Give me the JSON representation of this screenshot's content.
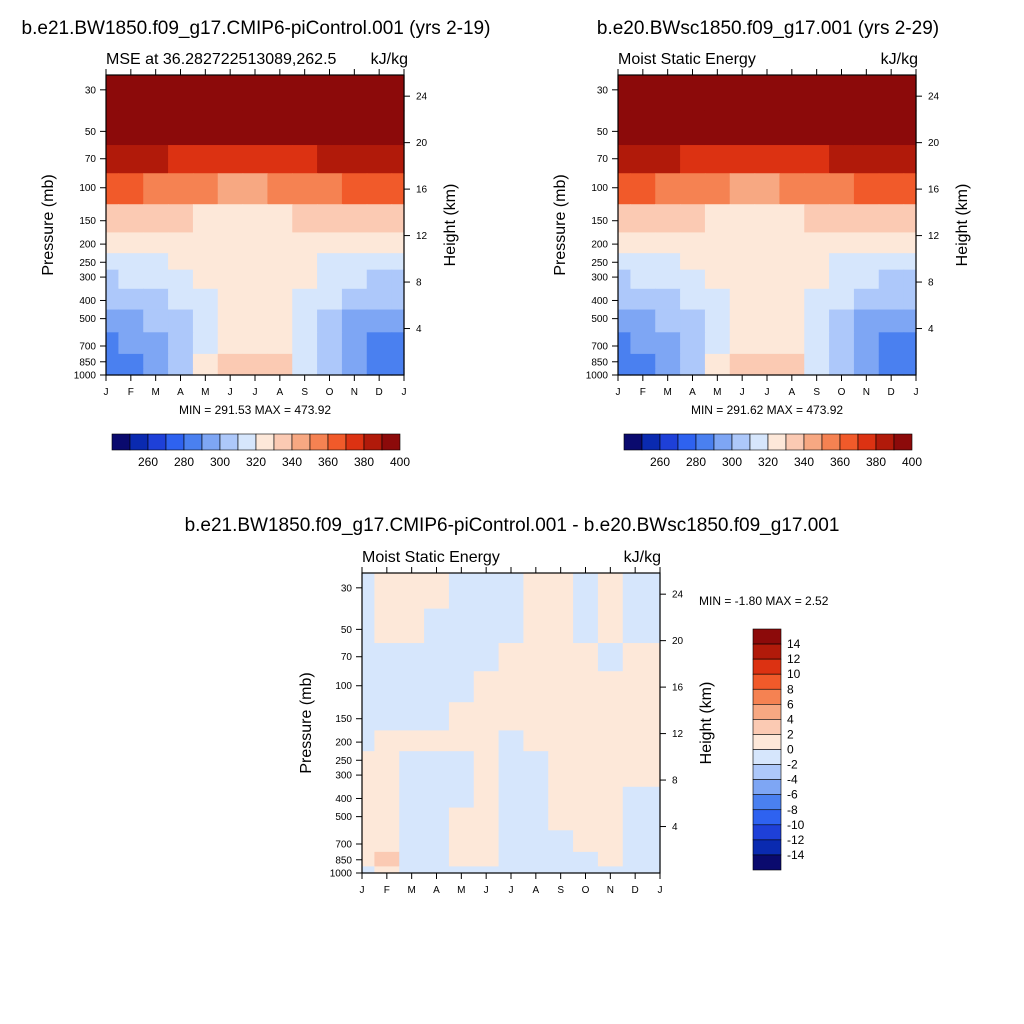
{
  "chart_data": [
    {
      "type": "heatmap",
      "title": "b.e21.BW1850.f09_g17.CMIP6-piControl.001 (yrs 2-19)",
      "subtitle_left": "MSE at 36.282722513089,262.5",
      "subtitle_right": "kJ/kg",
      "ylabel": "Pressure (mb)",
      "y2label": "Height (km)",
      "xticks": [
        "J",
        "F",
        "M",
        "A",
        "M",
        "J",
        "J",
        "A",
        "S",
        "O",
        "N",
        "D",
        "J"
      ],
      "pressure_ticks": [
        "30",
        "50",
        "70",
        "100",
        "150",
        "200",
        "250",
        "300",
        "400",
        "500",
        "700",
        "850",
        "1000"
      ],
      "height_ticks": [
        "24",
        "20",
        "16",
        "12",
        "8",
        "4"
      ],
      "min_max": "MIN = 291.53 MAX = 473.92",
      "colorbar_labels": [
        "260",
        "280",
        "300",
        "320",
        "340",
        "360",
        "380",
        "400"
      ],
      "colorbar_colors": [
        "#0a0a6e",
        "#0a2ab0",
        "#1e40d8",
        "#2e62f0",
        "#4a80f0",
        "#7ea6f4",
        "#adc8fa",
        "#d6e6fc",
        "#fde8d9",
        "#fbcab3",
        "#f7a882",
        "#f58252",
        "#f15a2a",
        "#dc3212",
        "#b11a0a",
        "#8c0a0a"
      ],
      "rows": [
        {
          "p": "30",
          "v": [
            420,
            420,
            420,
            420,
            420,
            420,
            420,
            420,
            420,
            420,
            420,
            420,
            420
          ]
        },
        {
          "p": "50",
          "v": [
            420,
            420,
            420,
            420,
            420,
            420,
            420,
            420,
            420,
            420,
            420,
            420,
            420
          ]
        },
        {
          "p": "70",
          "v": [
            398,
            396,
            392,
            388,
            386,
            384,
            384,
            386,
            388,
            392,
            396,
            398,
            398
          ]
        },
        {
          "p": "100",
          "v": [
            372,
            370,
            366,
            362,
            360,
            358,
            358,
            360,
            362,
            366,
            370,
            372,
            372
          ]
        },
        {
          "p": "150",
          "v": [
            348,
            346,
            343,
            340,
            339,
            338,
            338,
            339,
            340,
            343,
            346,
            348,
            348
          ]
        },
        {
          "p": "200",
          "v": [
            336,
            336,
            335,
            334,
            334,
            333,
            333,
            334,
            334,
            335,
            336,
            336,
            336
          ]
        },
        {
          "p": "250",
          "v": [
            324,
            325,
            327,
            330,
            333,
            336,
            337,
            335,
            331,
            328,
            325,
            324,
            324
          ]
        },
        {
          "p": "300",
          "v": [
            318,
            320,
            323,
            327,
            332,
            336,
            338,
            336,
            330,
            325,
            321,
            318,
            318
          ]
        },
        {
          "p": "400",
          "v": [
            310,
            312,
            316,
            322,
            328,
            334,
            337,
            334,
            327,
            320,
            314,
            310,
            310
          ]
        },
        {
          "p": "500",
          "v": [
            304,
            307,
            312,
            318,
            326,
            332,
            335,
            332,
            326,
            317,
            309,
            304,
            304
          ]
        },
        {
          "p": "700",
          "v": [
            298,
            302,
            308,
            316,
            326,
            334,
            338,
            334,
            326,
            314,
            304,
            298,
            298
          ]
        },
        {
          "p": "850",
          "v": [
            294,
            298,
            306,
            318,
            330,
            340,
            344,
            340,
            328,
            314,
            302,
            294,
            294
          ]
        },
        {
          "p": "1000",
          "v": [
            293,
            297,
            305,
            318,
            331,
            341,
            345,
            341,
            329,
            314,
            301,
            293,
            293
          ]
        }
      ]
    },
    {
      "type": "heatmap",
      "title": "b.e20.BWsc1850.f09_g17.001 (yrs 2-29)",
      "subtitle_left": "Moist Static Energy",
      "subtitle_right": "kJ/kg",
      "ylabel": "Pressure (mb)",
      "y2label": "Height (km)",
      "xticks": [
        "J",
        "F",
        "M",
        "A",
        "M",
        "J",
        "J",
        "A",
        "S",
        "O",
        "N",
        "D",
        "J"
      ],
      "pressure_ticks": [
        "30",
        "50",
        "70",
        "100",
        "150",
        "200",
        "250",
        "300",
        "400",
        "500",
        "700",
        "850",
        "1000"
      ],
      "height_ticks": [
        "24",
        "20",
        "16",
        "12",
        "8",
        "4"
      ],
      "min_max": "MIN = 291.62 MAX = 473.92",
      "colorbar_labels": [
        "260",
        "280",
        "300",
        "320",
        "340",
        "360",
        "380",
        "400"
      ],
      "colorbar_colors": [
        "#0a0a6e",
        "#0a2ab0",
        "#1e40d8",
        "#2e62f0",
        "#4a80f0",
        "#7ea6f4",
        "#adc8fa",
        "#d6e6fc",
        "#fde8d9",
        "#fbcab3",
        "#f7a882",
        "#f58252",
        "#f15a2a",
        "#dc3212",
        "#b11a0a",
        "#8c0a0a"
      ],
      "rows": [
        {
          "p": "30",
          "v": [
            420,
            420,
            420,
            420,
            420,
            420,
            420,
            420,
            420,
            420,
            420,
            420,
            420
          ]
        },
        {
          "p": "50",
          "v": [
            420,
            420,
            420,
            420,
            420,
            420,
            420,
            420,
            420,
            420,
            420,
            420,
            420
          ]
        },
        {
          "p": "70",
          "v": [
            398,
            396,
            392,
            388,
            386,
            384,
            384,
            386,
            388,
            392,
            396,
            398,
            398
          ]
        },
        {
          "p": "100",
          "v": [
            372,
            370,
            366,
            362,
            360,
            358,
            358,
            360,
            362,
            366,
            370,
            372,
            372
          ]
        },
        {
          "p": "150",
          "v": [
            348,
            346,
            343,
            340,
            339,
            338,
            338,
            339,
            340,
            343,
            346,
            348,
            348
          ]
        },
        {
          "p": "200",
          "v": [
            336,
            336,
            335,
            334,
            334,
            333,
            333,
            334,
            334,
            335,
            336,
            336,
            336
          ]
        },
        {
          "p": "250",
          "v": [
            324,
            325,
            327,
            330,
            333,
            336,
            337,
            335,
            331,
            328,
            325,
            324,
            324
          ]
        },
        {
          "p": "300",
          "v": [
            318,
            320,
            323,
            327,
            332,
            336,
            338,
            336,
            330,
            325,
            321,
            318,
            318
          ]
        },
        {
          "p": "400",
          "v": [
            310,
            312,
            316,
            322,
            328,
            334,
            337,
            334,
            327,
            320,
            314,
            310,
            310
          ]
        },
        {
          "p": "500",
          "v": [
            304,
            307,
            312,
            318,
            326,
            332,
            335,
            332,
            326,
            317,
            309,
            304,
            304
          ]
        },
        {
          "p": "700",
          "v": [
            298,
            302,
            308,
            316,
            326,
            334,
            338,
            334,
            326,
            314,
            304,
            298,
            298
          ]
        },
        {
          "p": "850",
          "v": [
            294,
            298,
            306,
            318,
            330,
            340,
            344,
            340,
            328,
            314,
            302,
            294,
            294
          ]
        },
        {
          "p": "1000",
          "v": [
            293,
            297,
            305,
            318,
            331,
            341,
            345,
            341,
            329,
            314,
            301,
            293,
            293
          ]
        }
      ]
    },
    {
      "type": "heatmap",
      "title": "b.e21.BW1850.f09_g17.CMIP6-piControl.001 - b.e20.BWsc1850.f09_g17.001",
      "subtitle_left": "Moist Static Energy",
      "subtitle_right": "kJ/kg",
      "ylabel": "Pressure (mb)",
      "y2label": "Height (km)",
      "xticks": [
        "J",
        "F",
        "M",
        "A",
        "M",
        "J",
        "J",
        "A",
        "S",
        "O",
        "N",
        "D",
        "J"
      ],
      "pressure_ticks": [
        "30",
        "50",
        "70",
        "100",
        "150",
        "200",
        "250",
        "300",
        "400",
        "500",
        "700",
        "850",
        "1000"
      ],
      "height_ticks": [
        "24",
        "20",
        "16",
        "12",
        "8",
        "4"
      ],
      "min_max": "MIN =  -1.80 MAX =   2.52",
      "colorbar_labels": [
        "14",
        "12",
        "10",
        "8",
        "6",
        "4",
        "2",
        "0",
        "-2",
        "-4",
        "-6",
        "-8",
        "-10",
        "-12",
        "-14"
      ],
      "colorbar_colors": [
        "#8c0a0a",
        "#b11a0a",
        "#dc3212",
        "#f15a2a",
        "#f58252",
        "#f7a882",
        "#fbcab3",
        "#fde8d9",
        "#d6e6fc",
        "#adc8fa",
        "#7ea6f4",
        "#4a80f0",
        "#2e62f0",
        "#1e40d8",
        "#0a2ab0",
        "#0a0a6e"
      ],
      "rows": [
        {
          "p": "30",
          "v": [
            -0.3,
            0.3,
            0.4,
            0.3,
            -0.2,
            -0.3,
            -0.2,
            0.3,
            0.2,
            -0.3,
            0.3,
            -0.2,
            -0.3
          ]
        },
        {
          "p": "50",
          "v": [
            -0.3,
            0.3,
            0.3,
            -0.2,
            -0.3,
            -0.3,
            -0.2,
            0.3,
            0.3,
            -0.3,
            0.3,
            -0.2,
            -0.3
          ]
        },
        {
          "p": "70",
          "v": [
            -0.3,
            -0.2,
            -0.3,
            -0.3,
            -0.3,
            -0.3,
            0.3,
            0.3,
            0.3,
            0.3,
            -0.2,
            0.3,
            0.2
          ]
        },
        {
          "p": "100",
          "v": [
            -0.3,
            -0.3,
            -0.3,
            -0.3,
            -0.3,
            0.2,
            0.3,
            0.3,
            0.3,
            0.3,
            0.3,
            0.3,
            0.3
          ]
        },
        {
          "p": "150",
          "v": [
            -0.3,
            -0.3,
            -0.3,
            -0.2,
            0.3,
            0.3,
            0.3,
            0.3,
            0.3,
            0.3,
            0.3,
            0.3,
            0.3
          ]
        },
        {
          "p": "200",
          "v": [
            -0.2,
            0.3,
            0.3,
            0.3,
            0.3,
            0.3,
            -0.2,
            0.3,
            0.3,
            0.3,
            0.3,
            0.3,
            0.3
          ]
        },
        {
          "p": "250",
          "v": [
            0.3,
            0.3,
            -0.2,
            -0.2,
            -0.2,
            0.3,
            -0.3,
            -0.2,
            0.3,
            0.3,
            0.3,
            0.3,
            0.3
          ]
        },
        {
          "p": "300",
          "v": [
            0.3,
            0.3,
            -0.3,
            -0.3,
            -0.3,
            0.3,
            -0.3,
            -0.2,
            0.3,
            0.3,
            0.3,
            0.3,
            0.3
          ]
        },
        {
          "p": "400",
          "v": [
            0.3,
            0.3,
            -0.3,
            -0.3,
            -0.3,
            0.3,
            -0.3,
            -0.3,
            0.3,
            0.3,
            0.3,
            -0.2,
            -0.2
          ]
        },
        {
          "p": "500",
          "v": [
            0.3,
            0.6,
            -0.3,
            -0.3,
            0.3,
            0.3,
            -0.3,
            -0.3,
            0.3,
            0.3,
            0.3,
            -0.2,
            -0.2
          ]
        },
        {
          "p": "700",
          "v": [
            0.3,
            1.2,
            -0.3,
            -0.3,
            0.3,
            0.3,
            -0.3,
            -0.3,
            -0.3,
            0.3,
            0.3,
            -0.2,
            -0.2
          ]
        },
        {
          "p": "850",
          "v": [
            0.3,
            2.4,
            -0.3,
            -0.3,
            0.3,
            0.3,
            -0.3,
            -0.3,
            -0.3,
            -0.3,
            0.3,
            -0.2,
            -0.2
          ]
        },
        {
          "p": "1000",
          "v": [
            -0.2,
            0.3,
            -0.2,
            -0.2,
            -0.2,
            -0.2,
            -0.2,
            -0.2,
            -0.2,
            -0.2,
            -0.2,
            -0.2,
            -0.2
          ]
        }
      ]
    }
  ]
}
